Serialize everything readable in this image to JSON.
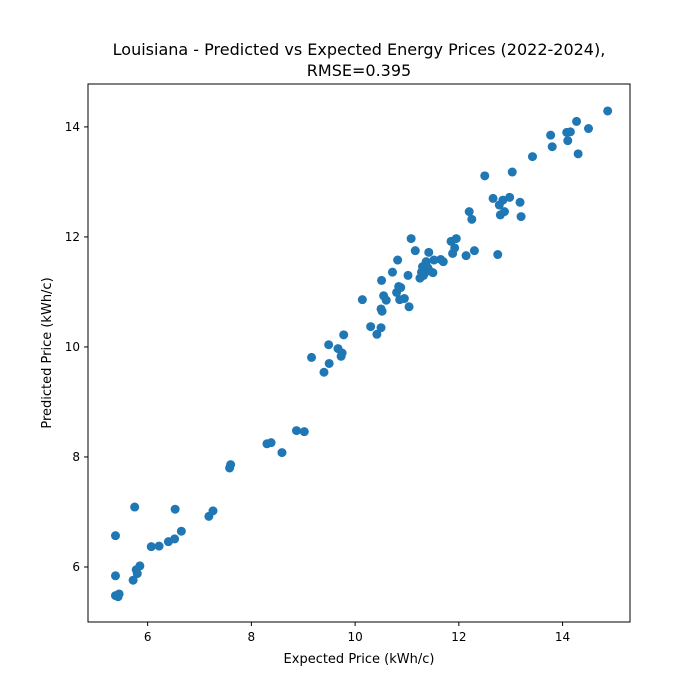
{
  "chart_data": {
    "type": "scatter",
    "title": "Louisiana - Predicted vs Expected Energy Prices (2022-2024),",
    "subtitle": "RMSE=0.395",
    "xlabel": "Expected Price (kWh/c)",
    "ylabel": "Predicted Price (kWh/c)",
    "xlim": [
      4.85,
      15.3
    ],
    "ylim": [
      5.0,
      14.78
    ],
    "xticks": [
      6,
      8,
      10,
      12,
      14
    ],
    "yticks": [
      6,
      8,
      10,
      12,
      14
    ],
    "grid": false,
    "marker_color": "#1f77b4",
    "points": [
      [
        5.38,
        6.57
      ],
      [
        5.38,
        5.84
      ],
      [
        5.38,
        5.48
      ],
      [
        5.43,
        5.46
      ],
      [
        5.45,
        5.51
      ],
      [
        5.72,
        5.76
      ],
      [
        5.75,
        7.09
      ],
      [
        5.78,
        5.95
      ],
      [
        5.8,
        5.88
      ],
      [
        5.85,
        6.02
      ],
      [
        6.07,
        6.37
      ],
      [
        6.22,
        6.38
      ],
      [
        6.4,
        6.46
      ],
      [
        6.52,
        6.51
      ],
      [
        6.53,
        7.05
      ],
      [
        6.65,
        6.65
      ],
      [
        7.18,
        6.92
      ],
      [
        7.26,
        7.02
      ],
      [
        7.58,
        7.8
      ],
      [
        7.6,
        7.86
      ],
      [
        8.3,
        8.24
      ],
      [
        8.38,
        8.26
      ],
      [
        8.59,
        8.08
      ],
      [
        8.87,
        8.48
      ],
      [
        9.02,
        8.46
      ],
      [
        9.16,
        9.81
      ],
      [
        9.4,
        9.54
      ],
      [
        9.49,
        10.04
      ],
      [
        9.5,
        9.7
      ],
      [
        9.67,
        9.97
      ],
      [
        9.73,
        9.83
      ],
      [
        9.75,
        9.89
      ],
      [
        9.78,
        10.22
      ],
      [
        10.14,
        10.86
      ],
      [
        10.3,
        10.37
      ],
      [
        10.42,
        10.23
      ],
      [
        10.5,
        10.35
      ],
      [
        10.5,
        10.69
      ],
      [
        10.52,
        10.65
      ],
      [
        10.51,
        11.21
      ],
      [
        10.55,
        10.93
      ],
      [
        10.6,
        10.85
      ],
      [
        10.72,
        11.36
      ],
      [
        10.8,
        10.99
      ],
      [
        10.82,
        11.58
      ],
      [
        10.84,
        11.1
      ],
      [
        10.86,
        10.86
      ],
      [
        10.88,
        11.08
      ],
      [
        10.95,
        10.88
      ],
      [
        11.02,
        11.3
      ],
      [
        11.04,
        10.73
      ],
      [
        11.08,
        11.97
      ],
      [
        11.16,
        11.75
      ],
      [
        11.25,
        11.25
      ],
      [
        11.28,
        11.36
      ],
      [
        11.3,
        11.46
      ],
      [
        11.32,
        11.3
      ],
      [
        11.37,
        11.55
      ],
      [
        11.4,
        11.44
      ],
      [
        11.42,
        11.72
      ],
      [
        11.44,
        11.38
      ],
      [
        11.5,
        11.35
      ],
      [
        11.52,
        11.58
      ],
      [
        11.65,
        11.59
      ],
      [
        11.7,
        11.55
      ],
      [
        11.85,
        11.92
      ],
      [
        11.88,
        11.7
      ],
      [
        11.92,
        11.8
      ],
      [
        11.95,
        11.97
      ],
      [
        12.14,
        11.66
      ],
      [
        12.2,
        12.46
      ],
      [
        12.25,
        12.32
      ],
      [
        12.3,
        11.75
      ],
      [
        12.5,
        13.11
      ],
      [
        12.66,
        12.7
      ],
      [
        12.75,
        11.68
      ],
      [
        12.78,
        12.58
      ],
      [
        12.8,
        12.4
      ],
      [
        12.85,
        12.67
      ],
      [
        12.88,
        12.46
      ],
      [
        12.98,
        12.72
      ],
      [
        13.03,
        13.18
      ],
      [
        13.18,
        12.63
      ],
      [
        13.2,
        12.37
      ],
      [
        13.42,
        13.46
      ],
      [
        13.77,
        13.85
      ],
      [
        13.8,
        13.64
      ],
      [
        14.08,
        13.9
      ],
      [
        14.1,
        13.75
      ],
      [
        14.15,
        13.91
      ],
      [
        14.27,
        14.1
      ],
      [
        14.3,
        13.51
      ],
      [
        14.5,
        13.97
      ],
      [
        14.87,
        14.29
      ]
    ]
  }
}
